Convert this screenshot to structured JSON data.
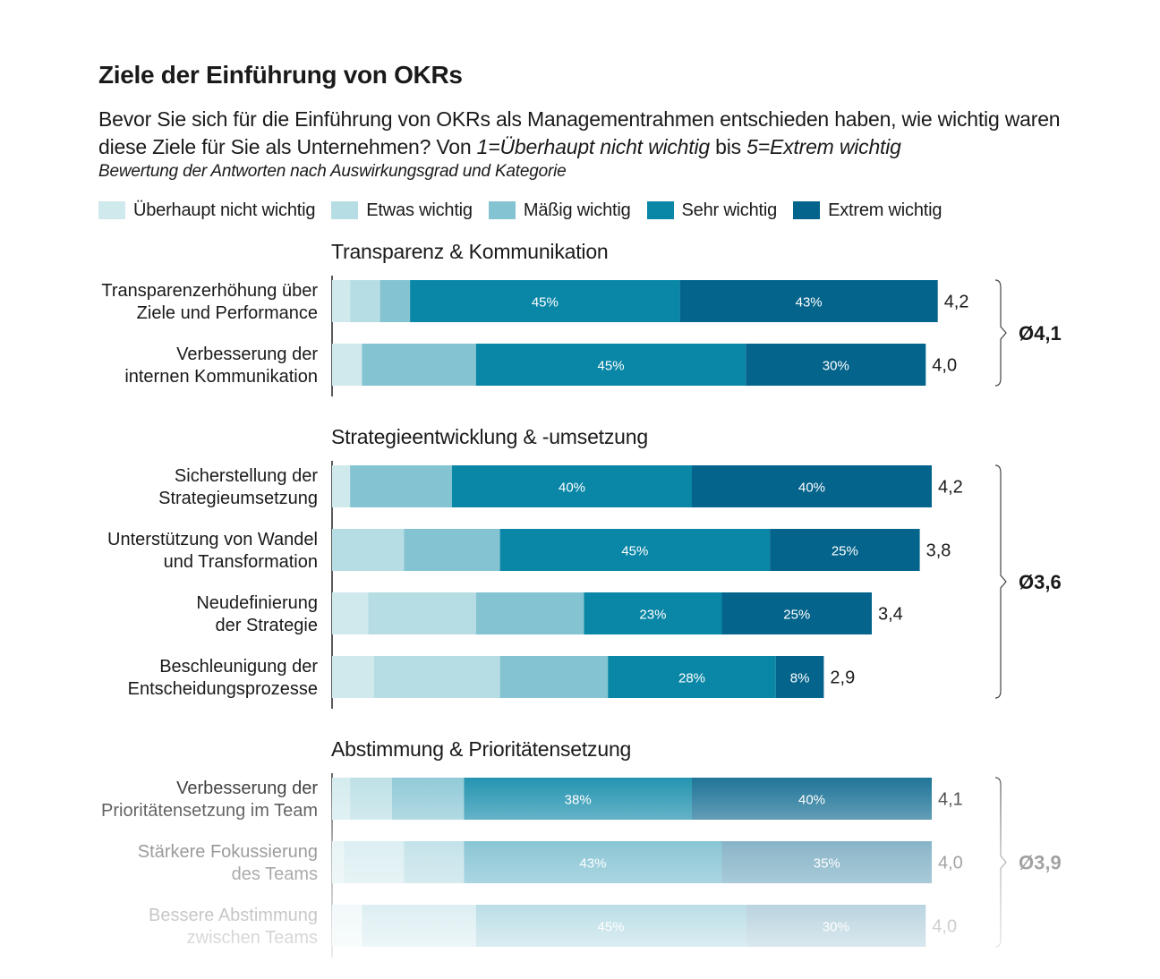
{
  "title": "Ziele der Einführung von OKRs",
  "question": {
    "part1": "Bevor Sie sich für die Einführung von OKRs als Managementrahmen entschieden haben, wie wichtig waren diese Ziele für Sie als Unternehmen? Von ",
    "scale_low": "1=Überhaupt nicht wichtig",
    "part2": " bis ",
    "scale_high": "5=Extrem wichtig"
  },
  "note": "Bewertung der Antworten nach Auswirkungsgrad und Kategorie",
  "colors": [
    "#cfe9ec",
    "#b6dde4",
    "#84c4d2",
    "#0a87a7",
    "#05648c"
  ],
  "chart_data": {
    "type": "bar",
    "orientation": "horizontal",
    "stacked": true,
    "unit": "%",
    "legend": [
      "Überhaupt nicht wichtig",
      "Etwas wichtig",
      "Mäßig wichtig",
      "Sehr wichtig",
      "Extrem wichtig"
    ],
    "xlim": [
      0,
      100
    ],
    "groups": [
      {
        "name": "Transparenz & Kommunikation",
        "average": "Ø4,1",
        "items": [
          {
            "label": [
              "Transparenzerhöhung über",
              "Ziele und Performance"
            ],
            "values": [
              3,
              5,
              5,
              45,
              43
            ],
            "score": "4,2"
          },
          {
            "label": [
              "Verbesserung der",
              "internen Kommunikation"
            ],
            "values": [
              5,
              0,
              19,
              45,
              30
            ],
            "score": "4,0"
          }
        ]
      },
      {
        "name": "Strategieentwicklung & -umsetzung",
        "average": "Ø3,6",
        "items": [
          {
            "label": [
              "Sicherstellung der",
              "Strategieumsetzung"
            ],
            "values": [
              3,
              0,
              17,
              40,
              40
            ],
            "score": "4,2"
          },
          {
            "label": [
              "Unterstützung von Wandel",
              "und Transformation"
            ],
            "values": [
              0,
              12,
              16,
              45,
              25
            ],
            "score": "3,8"
          },
          {
            "label": [
              "Neudefinierung",
              "der Strategie"
            ],
            "values": [
              6,
              18,
              18,
              23,
              25
            ],
            "score": "3,4"
          },
          {
            "label": [
              "Beschleunigung der",
              "Entscheidungsprozesse"
            ],
            "values": [
              7,
              21,
              18,
              28,
              8
            ],
            "score": "2,9"
          }
        ]
      },
      {
        "name": "Abstimmung & Prioritätensetzung",
        "average": "Ø3,9",
        "items": [
          {
            "label": [
              "Verbesserung der",
              "Prioritätensetzung im Team"
            ],
            "values": [
              3,
              7,
              12,
              38,
              40
            ],
            "score": "4,1"
          },
          {
            "label": [
              "Stärkere Fokussierung",
              "des Teams"
            ],
            "values": [
              2,
              10,
              10,
              43,
              35
            ],
            "score": "4,0"
          },
          {
            "label": [
              "Bessere Abstimmung",
              "zwischen Teams"
            ],
            "values": [
              5,
              0,
              19,
              45,
              30
            ],
            "score": "4,0"
          }
        ]
      }
    ]
  }
}
